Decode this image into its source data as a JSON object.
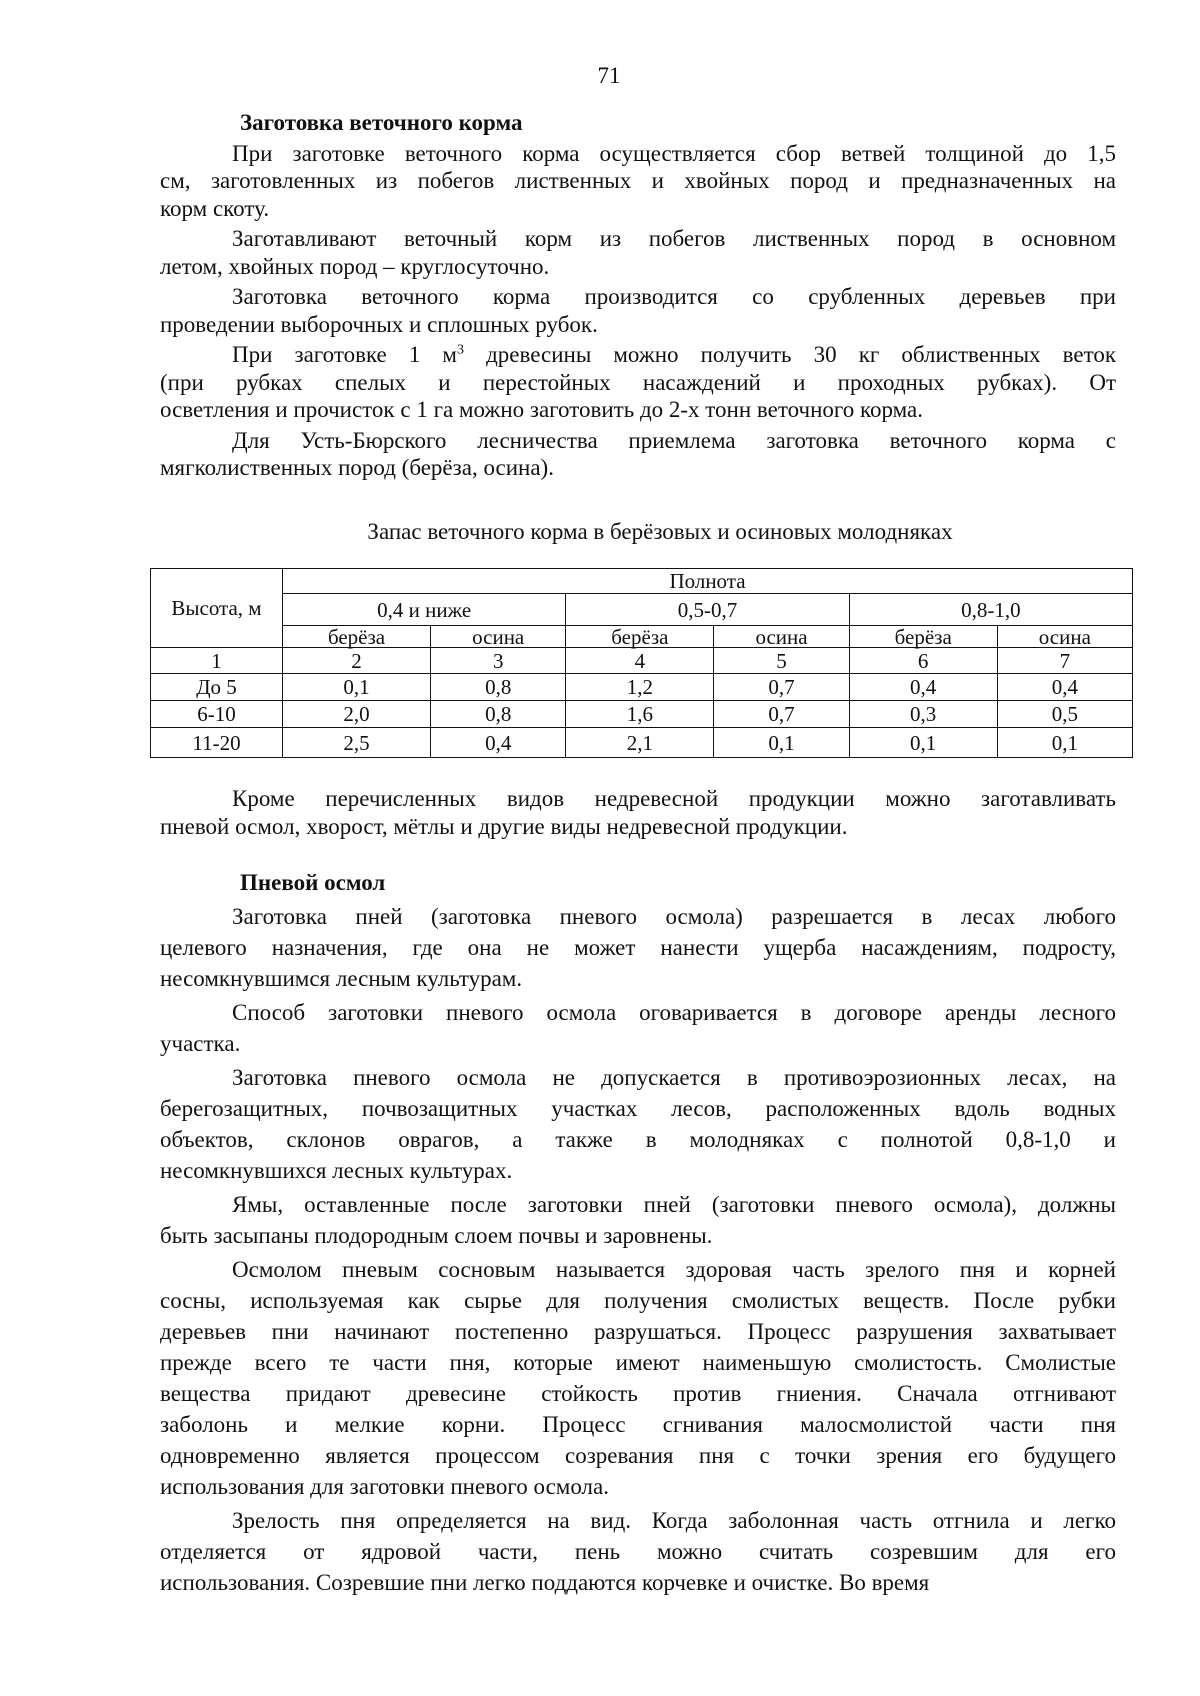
{
  "page_number": "71",
  "section1": {
    "heading": "Заготовка веточного корма",
    "paragraphs": [
      [
        "При заготовке веточного корма осуществляется сбор ветвей толщиной до 1,5",
        "см, заготовленных из побегов лиственных и хвойных пород и предназначенных на",
        "корм скоту."
      ],
      [
        "Заготавливают веточный корм из побегов лиственных пород в основном",
        "летом, хвойных пород – круглосуточно."
      ],
      [
        "Заготовка веточного корма производится со срубленных деревьев при",
        "проведении выборочных и сплошных рубок."
      ],
      [
        "При заготовке 1 м³ древесины можно получить 30 кг облиственных веток",
        "(при рубках спелых и перестойных насаждений и проходных рубках). От",
        "осветления и прочисток с 1 га можно заготовить до 2-х тонн веточного корма."
      ],
      [
        "Для Усть-Бюрского лесничества приемлема заготовка веточного корма с",
        "мягколиственных пород (берёза, осина)."
      ]
    ]
  },
  "table": {
    "caption": "Запас веточного корма в берёзовых и осиновых молодняках",
    "row_header": "Высота, м",
    "group_header": "Полнота",
    "groups": [
      "0,4 и ниже",
      "0,5-0,7",
      "0,8-1,0"
    ],
    "species": [
      "берёза",
      "осина",
      "берёза",
      "осина",
      "берёза",
      "осина"
    ],
    "column_numbers": [
      "1",
      "2",
      "3",
      "4",
      "5",
      "6",
      "7"
    ],
    "rows": [
      [
        "До 5",
        "0,1",
        "0,8",
        "1,2",
        "0,7",
        "0,4",
        "0,4"
      ],
      [
        "6-10",
        "2,0",
        "0,8",
        "1,6",
        "0,7",
        "0,3",
        "0,5"
      ],
      [
        "11-20",
        "2,5",
        "0,4",
        "2,1",
        "0,1",
        "0,1",
        "0,1"
      ]
    ]
  },
  "after_table": [
    "Кроме перечисленных видов недревесной продукции можно заготавливать",
    "пневой осмол, хворост, мётлы и другие виды недревесной продукции."
  ],
  "section2": {
    "heading": "Пневой осмол",
    "paragraphs": [
      [
        "Заготовка пней (заготовка пневого осмола) разрешается в лесах любого",
        "целевого назначения, где она не может нанести ущерба насаждениям, подросту,",
        "несомкнувшимся лесным культурам."
      ],
      [
        "Способ заготовки пневого осмола оговаривается в договоре аренды лесного",
        "участка."
      ],
      [
        "Заготовка пневого осмола не допускается в противоэрозионных лесах, на",
        "берегозащитных, почвозащитных участках лесов, расположенных вдоль водных",
        "объектов, склонов оврагов, а также в молодняках с полнотой 0,8-1,0 и",
        "несомкнувшихся лесных культурах."
      ],
      [
        "Ямы, оставленные после заготовки пней (заготовки пневого осмола), должны",
        "быть засыпаны плодородным слоем почвы и заровнены."
      ],
      [
        "Осмолом пневым сосновым называется здоровая часть зрелого пня и корней",
        "сосны, используемая как сырье для получения смолистых веществ. После рубки",
        "деревьев пни начинают постепенно разрушаться. Процесс разрушения захватывает",
        "прежде всего те части пня, которые имеют наименьшую смолистость. Смолистые",
        "вещества придают древесине стойкость против гниения. Сначала отгнивают",
        "заболонь и мелкие корни. Процесс сгнивания малосмолистой части пня",
        "одновременно является процессом созревания пня с точки зрения его будущего",
        "использования для заготовки пневого осмола."
      ],
      [
        "Зрелость пня определяется на вид. Когда заболонная часть отгнила и легко",
        "отделяется от ядровой части, пень можно считать созревшим для его",
        "использования. Созревшие пни легко поддаются корчевке и очистке. Во время"
      ]
    ]
  }
}
